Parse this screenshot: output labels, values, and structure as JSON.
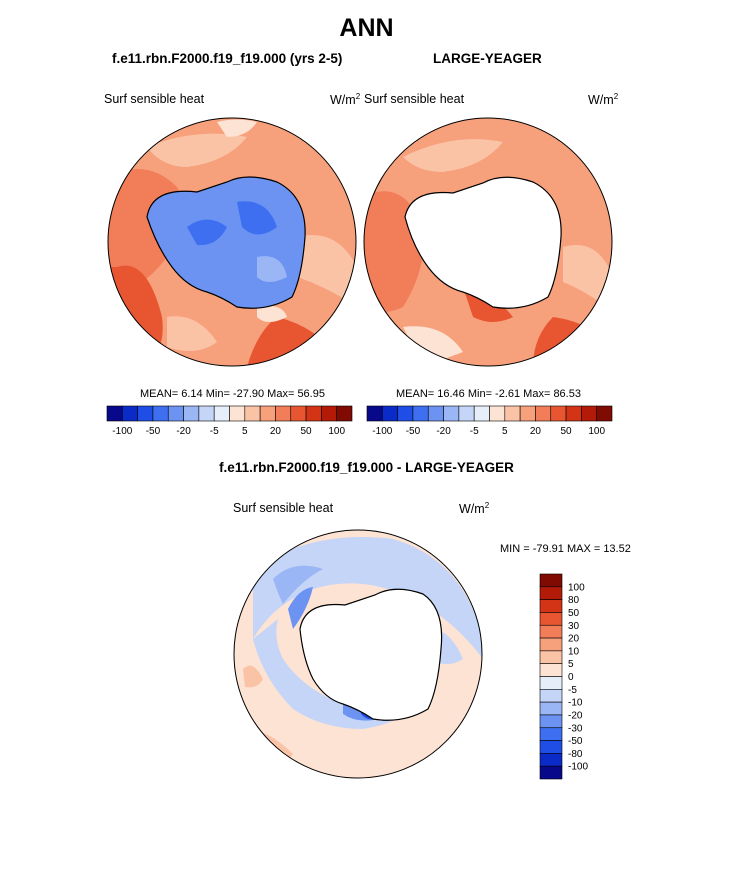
{
  "title": "ANN",
  "panel_top_left": {
    "case_label": "f.e11.rbn.F2000.f19_f19.000 (yrs 2-5)",
    "variable": "Surf sensible heat",
    "units": "W/m",
    "units_exp": "2",
    "stats": "MEAN=  6.14  Min= -27.90  Max=  56.95"
  },
  "panel_top_right": {
    "case_label": "LARGE-YEAGER",
    "variable": "Surf sensible heat",
    "units": "W/m",
    "units_exp": "2",
    "stats": "MEAN=  16.46  Min=  -2.61  Max=  86.53"
  },
  "panel_bottom": {
    "case_label": "f.e11.rbn.F2000.f19_f19.000 - LARGE-YEAGER",
    "variable": "Surf sensible heat",
    "units": "W/m",
    "units_exp": "2",
    "stats": "MIN = -79.91 MAX =  13.52"
  },
  "colorbar_top": {
    "colors": [
      "#08088a",
      "#0a2bc8",
      "#1f4ee6",
      "#3d6ff0",
      "#6c93f2",
      "#9ab6f4",
      "#c4d5f7",
      "#e6eef9",
      "#fde3d3",
      "#fbc3a6",
      "#f7a07c",
      "#f27d59",
      "#e85631",
      "#d43416",
      "#b31b08",
      "#7f0b02"
    ],
    "labels": [
      "-100",
      "-50",
      "-20",
      "-5",
      "5",
      "20",
      "50",
      "100"
    ]
  },
  "colorbar_bottom": {
    "colors": [
      "#08088a",
      "#0a2bc8",
      "#1f4ee6",
      "#3d6ff0",
      "#6c93f2",
      "#9ab6f4",
      "#c4d5f7",
      "#e6eef9",
      "#fde3d3",
      "#fbc3a6",
      "#f7a07c",
      "#f27d59",
      "#e85631",
      "#d43416",
      "#b31b08",
      "#7f0b02"
    ],
    "labels": [
      "-100",
      "-80",
      "-50",
      "-30",
      "-20",
      "-10",
      "-5",
      "0",
      "5",
      "10",
      "20",
      "30",
      "50",
      "80",
      "100"
    ]
  }
}
